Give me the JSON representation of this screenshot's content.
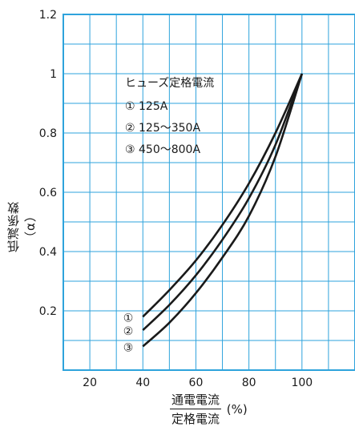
{
  "chart_data": {
    "type": "line",
    "ylabel": "低減係数（α）",
    "xlabel_numerator": "通電電流",
    "xlabel_denominator": "定格電流",
    "xlabel_unit": "(%)",
    "x_ticks": [
      20,
      40,
      60,
      80,
      100
    ],
    "y_ticks": [
      0.2,
      0.4,
      0.6,
      0.8,
      1,
      1.2
    ],
    "xlim": [
      10,
      120
    ],
    "ylim": [
      0,
      1.2
    ],
    "grid": true,
    "legend": {
      "title": "ヒューズ定格電流",
      "items": [
        "① 125A",
        "② 125〜350A",
        "③ 450〜800A"
      ],
      "placement": "top-left"
    },
    "series": [
      {
        "name": "①",
        "x": [
          40,
          50,
          60,
          70,
          80,
          90,
          100
        ],
        "y": [
          0.18,
          0.27,
          0.37,
          0.49,
          0.63,
          0.8,
          1.0
        ]
      },
      {
        "name": "②",
        "x": [
          40,
          50,
          60,
          70,
          80,
          90,
          100
        ],
        "y": [
          0.135,
          0.22,
          0.32,
          0.44,
          0.58,
          0.76,
          1.0
        ]
      },
      {
        "name": "③",
        "x": [
          40,
          50,
          60,
          70,
          80,
          90,
          100
        ],
        "y": [
          0.08,
          0.16,
          0.26,
          0.38,
          0.52,
          0.72,
          1.0
        ]
      }
    ],
    "colors": {
      "grid": "#2ea3dc",
      "axis": "#2ea3dc",
      "line": "#1a1a1a"
    }
  }
}
